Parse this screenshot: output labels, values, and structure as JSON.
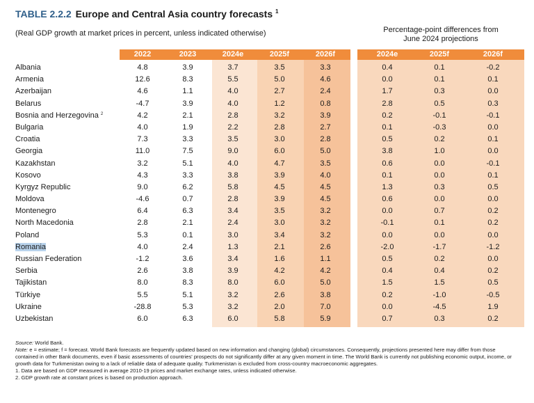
{
  "title": {
    "number": "TABLE 2.2.2",
    "text": "Europe and Central Asia country forecasts",
    "sup": "1"
  },
  "subtitle": "(Real GDP growth at market prices in percent, unless indicated otherwise)",
  "diff_header": {
    "line1": "Percentage-point differences from",
    "line2": "June 2024 projections"
  },
  "columns": [
    "2022",
    "2023",
    "2024e",
    "2025f",
    "2026f"
  ],
  "diff_columns": [
    "2024e",
    "2025f",
    "2026f"
  ],
  "colors": {
    "header": "#f08c3b",
    "light": "#fbe5d3",
    "mid": "#f9d3b3",
    "dark": "#f6c29a",
    "highlight": "#b9d3ec"
  },
  "rows": [
    {
      "country": "Albania",
      "vals": [
        "4.8",
        "3.9",
        "3.7",
        "3.5",
        "3.3"
      ],
      "diff": [
        "0.4",
        "0.1",
        "-0.2"
      ]
    },
    {
      "country": "Armenia",
      "vals": [
        "12.6",
        "8.3",
        "5.5",
        "5.0",
        "4.6"
      ],
      "diff": [
        "0.0",
        "0.1",
        "0.1"
      ]
    },
    {
      "country": "Azerbaijan",
      "vals": [
        "4.6",
        "1.1",
        "4.0",
        "2.7",
        "2.4"
      ],
      "diff": [
        "1.7",
        "0.3",
        "0.0"
      ]
    },
    {
      "country": "Belarus",
      "vals": [
        "-4.7",
        "3.9",
        "4.0",
        "1.2",
        "0.8"
      ],
      "diff": [
        "2.8",
        "0.5",
        "0.3"
      ]
    },
    {
      "country": "Bosnia and Herzegovina",
      "sup": "2",
      "vals": [
        "4.2",
        "2.1",
        "2.8",
        "3.2",
        "3.9"
      ],
      "diff": [
        "0.2",
        "-0.1",
        "-0.1"
      ]
    },
    {
      "country": "Bulgaria",
      "vals": [
        "4.0",
        "1.9",
        "2.2",
        "2.8",
        "2.7"
      ],
      "diff": [
        "0.1",
        "-0.3",
        "0.0"
      ]
    },
    {
      "country": "Croatia",
      "vals": [
        "7.3",
        "3.3",
        "3.5",
        "3.0",
        "2.8"
      ],
      "diff": [
        "0.5",
        "0.2",
        "0.1"
      ]
    },
    {
      "country": "Georgia",
      "vals": [
        "11.0",
        "7.5",
        "9.0",
        "6.0",
        "5.0"
      ],
      "diff": [
        "3.8",
        "1.0",
        "0.0"
      ]
    },
    {
      "country": "Kazakhstan",
      "vals": [
        "3.2",
        "5.1",
        "4.0",
        "4.7",
        "3.5"
      ],
      "diff": [
        "0.6",
        "0.0",
        "-0.1"
      ]
    },
    {
      "country": "Kosovo",
      "vals": [
        "4.3",
        "3.3",
        "3.8",
        "3.9",
        "4.0"
      ],
      "diff": [
        "0.1",
        "0.0",
        "0.1"
      ]
    },
    {
      "country": "Kyrgyz Republic",
      "vals": [
        "9.0",
        "6.2",
        "5.8",
        "4.5",
        "4.5"
      ],
      "diff": [
        "1.3",
        "0.3",
        "0.5"
      ]
    },
    {
      "country": "Moldova",
      "vals": [
        "-4.6",
        "0.7",
        "2.8",
        "3.9",
        "4.5"
      ],
      "diff": [
        "0.6",
        "0.0",
        "0.0"
      ]
    },
    {
      "country": "Montenegro",
      "vals": [
        "6.4",
        "6.3",
        "3.4",
        "3.5",
        "3.2"
      ],
      "diff": [
        "0.0",
        "0.7",
        "0.2"
      ]
    },
    {
      "country": "North Macedonia",
      "vals": [
        "2.8",
        "2.1",
        "2.4",
        "3.0",
        "3.2"
      ],
      "diff": [
        "-0.1",
        "0.1",
        "0.2"
      ]
    },
    {
      "country": "Poland",
      "vals": [
        "5.3",
        "0.1",
        "3.0",
        "3.4",
        "3.2"
      ],
      "diff": [
        "0.0",
        "0.0",
        "0.0"
      ]
    },
    {
      "country": "Romania",
      "highlight": true,
      "vals": [
        "4.0",
        "2.4",
        "1.3",
        "2.1",
        "2.6"
      ],
      "diff": [
        "-2.0",
        "-1.7",
        "-1.2"
      ]
    },
    {
      "country": "Russian Federation",
      "vals": [
        "-1.2",
        "3.6",
        "3.4",
        "1.6",
        "1.1"
      ],
      "diff": [
        "0.5",
        "0.2",
        "0.0"
      ]
    },
    {
      "country": "Serbia",
      "vals": [
        "2.6",
        "3.8",
        "3.9",
        "4.2",
        "4.2"
      ],
      "diff": [
        "0.4",
        "0.4",
        "0.2"
      ]
    },
    {
      "country": "Tajikistan",
      "vals": [
        "8.0",
        "8.3",
        "8.0",
        "6.0",
        "5.0"
      ],
      "diff": [
        "1.5",
        "1.5",
        "0.5"
      ]
    },
    {
      "country": "Türkiye",
      "vals": [
        "5.5",
        "5.1",
        "3.2",
        "2.6",
        "3.8"
      ],
      "diff": [
        "0.2",
        "-1.0",
        "-0.5"
      ]
    },
    {
      "country": "Ukraine",
      "vals": [
        "-28.8",
        "5.3",
        "3.2",
        "2.0",
        "7.0"
      ],
      "diff": [
        "0.0",
        "-4.5",
        "1.9"
      ]
    },
    {
      "country": "Uzbekistan",
      "vals": [
        "6.0",
        "6.3",
        "6.0",
        "5.8",
        "5.9"
      ],
      "diff": [
        "0.7",
        "0.3",
        "0.2"
      ]
    }
  ],
  "notes": {
    "source_label": "Source:",
    "source_text": "World Bank.",
    "note_label": "Note:",
    "note_text": "e = estimate; f = forecast. World Bank forecasts are frequently updated based on new information and changing (global) circumstances. Consequently, projections presented here may differ from those contained in other Bank documents, even if basic assessments of countries' prospects do not significantly differ at any given moment in time. The World Bank is currently not publishing economic output, income, or growth data for Turkmenistan owing to a lack of reliable data of adequate quality. Turkmenistan is excluded from cross-country macroeconomic aggregates.",
    "footnote1": "1. Data are based on GDP measured in average 2010-19 prices and market exchange rates, unless indicated otherwise.",
    "footnote2": "2. GDP growth rate at constant prices is based on production approach."
  }
}
